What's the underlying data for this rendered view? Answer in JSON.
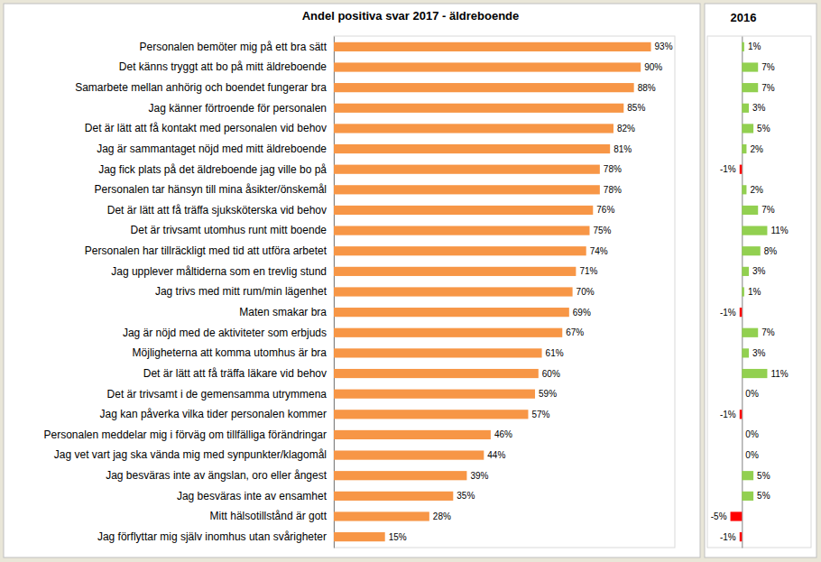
{
  "chart_data": [
    {
      "type": "bar",
      "title": "Andel positiva svar 2017 - äldreboende",
      "orientation": "horizontal",
      "categories": [
        "Personalen bemöter mig på ett bra sätt",
        "Det känns tryggt att bo på mitt äldreboende",
        "Samarbete mellan anhörig och boendet fungerar bra",
        "Jag känner förtroende för personalen",
        "Det är lätt att få kontakt med personalen vid behov",
        "Jag är sammantaget nöjd med mitt äldreboende",
        "Jag fick plats på det äldreboende jag ville bo på",
        "Personalen tar hänsyn till mina åsikter/önskemål",
        "Det är lätt att få träffa sjuksköterska vid behov",
        "Det är trivsamt utomhus runt mitt boende",
        "Personalen har tillräckligt med tid att utföra arbetet",
        "Jag upplever måltiderna som en trevlig stund",
        "Jag trivs med mitt rum/min lägenhet",
        "Maten smakar bra",
        "Jag är nöjd med de aktiviteter som erbjuds",
        "Möjligheterna att komma utomhus är bra",
        "Det är lätt att få träffa läkare vid behov",
        "Det är trivsamt i de gemensamma utrymmena",
        "Jag kan påverka vilka tider personalen kommer",
        "Personalen meddelar mig i förväg om tillfälliga förändringar",
        "Jag vet vart jag ska vända mig med synpunkter/klagomål",
        "Jag besväras inte av ängslan, oro eller ångest",
        "Jag besväras inte av ensamhet",
        "Mitt hälsotillstånd är gott",
        "Jag förflyttar mig själv inomhus utan svårigheter"
      ],
      "values": [
        93,
        90,
        88,
        85,
        82,
        81,
        78,
        78,
        76,
        75,
        74,
        71,
        70,
        69,
        67,
        61,
        60,
        59,
        57,
        46,
        44,
        39,
        35,
        28,
        15
      ],
      "value_labels": [
        "93%",
        "90%",
        "88%",
        "85%",
        "82%",
        "81%",
        "78%",
        "78%",
        "76%",
        "75%",
        "74%",
        "71%",
        "70%",
        "69%",
        "67%",
        "61%",
        "60%",
        "59%",
        "57%",
        "46%",
        "44%",
        "39%",
        "35%",
        "28%",
        "15%"
      ],
      "color": "#f79646",
      "xlim": [
        0,
        100
      ],
      "grid": false,
      "data_labels": true,
      "tick_labels": "y"
    },
    {
      "type": "bar",
      "title": "2016",
      "orientation": "horizontal",
      "categories": [
        null,
        null,
        null,
        null,
        null,
        null,
        null,
        null,
        null,
        null,
        null,
        null,
        null,
        null,
        null,
        null,
        null,
        null,
        null,
        null,
        null,
        null,
        null,
        null,
        null
      ],
      "values": [
        1,
        7,
        7,
        3,
        5,
        2,
        -1,
        2,
        7,
        11,
        8,
        3,
        1,
        -1,
        7,
        3,
        11,
        0,
        -1,
        0,
        0,
        5,
        5,
        -5,
        -1
      ],
      "value_labels": [
        "1%",
        "7%",
        "7%",
        "3%",
        "5%",
        "2%",
        "-1%",
        "2%",
        "7%",
        "11%",
        "8%",
        "3%",
        "1%",
        "-1%",
        "7%",
        "3%",
        "11%",
        "0%",
        "-1%",
        "0%",
        "0%",
        "5%",
        "5%",
        "-5%",
        "-1%"
      ],
      "colors": [
        "#92d050",
        "#92d050",
        "#92d050",
        "#92d050",
        "#92d050",
        "#92d050",
        "#ff0000",
        "#92d050",
        "#92d050",
        "#92d050",
        "#92d050",
        "#92d050",
        "#92d050",
        "#ff0000",
        "#92d050",
        "#92d050",
        "#92d050",
        "#92d050",
        "#ff0000",
        "#92d050",
        "#92d050",
        "#92d050",
        "#92d050",
        "#ff0000",
        "#ff0000"
      ],
      "xlim": [
        -15,
        30
      ],
      "grid": false,
      "data_labels": true,
      "tick_labels": false
    }
  ]
}
